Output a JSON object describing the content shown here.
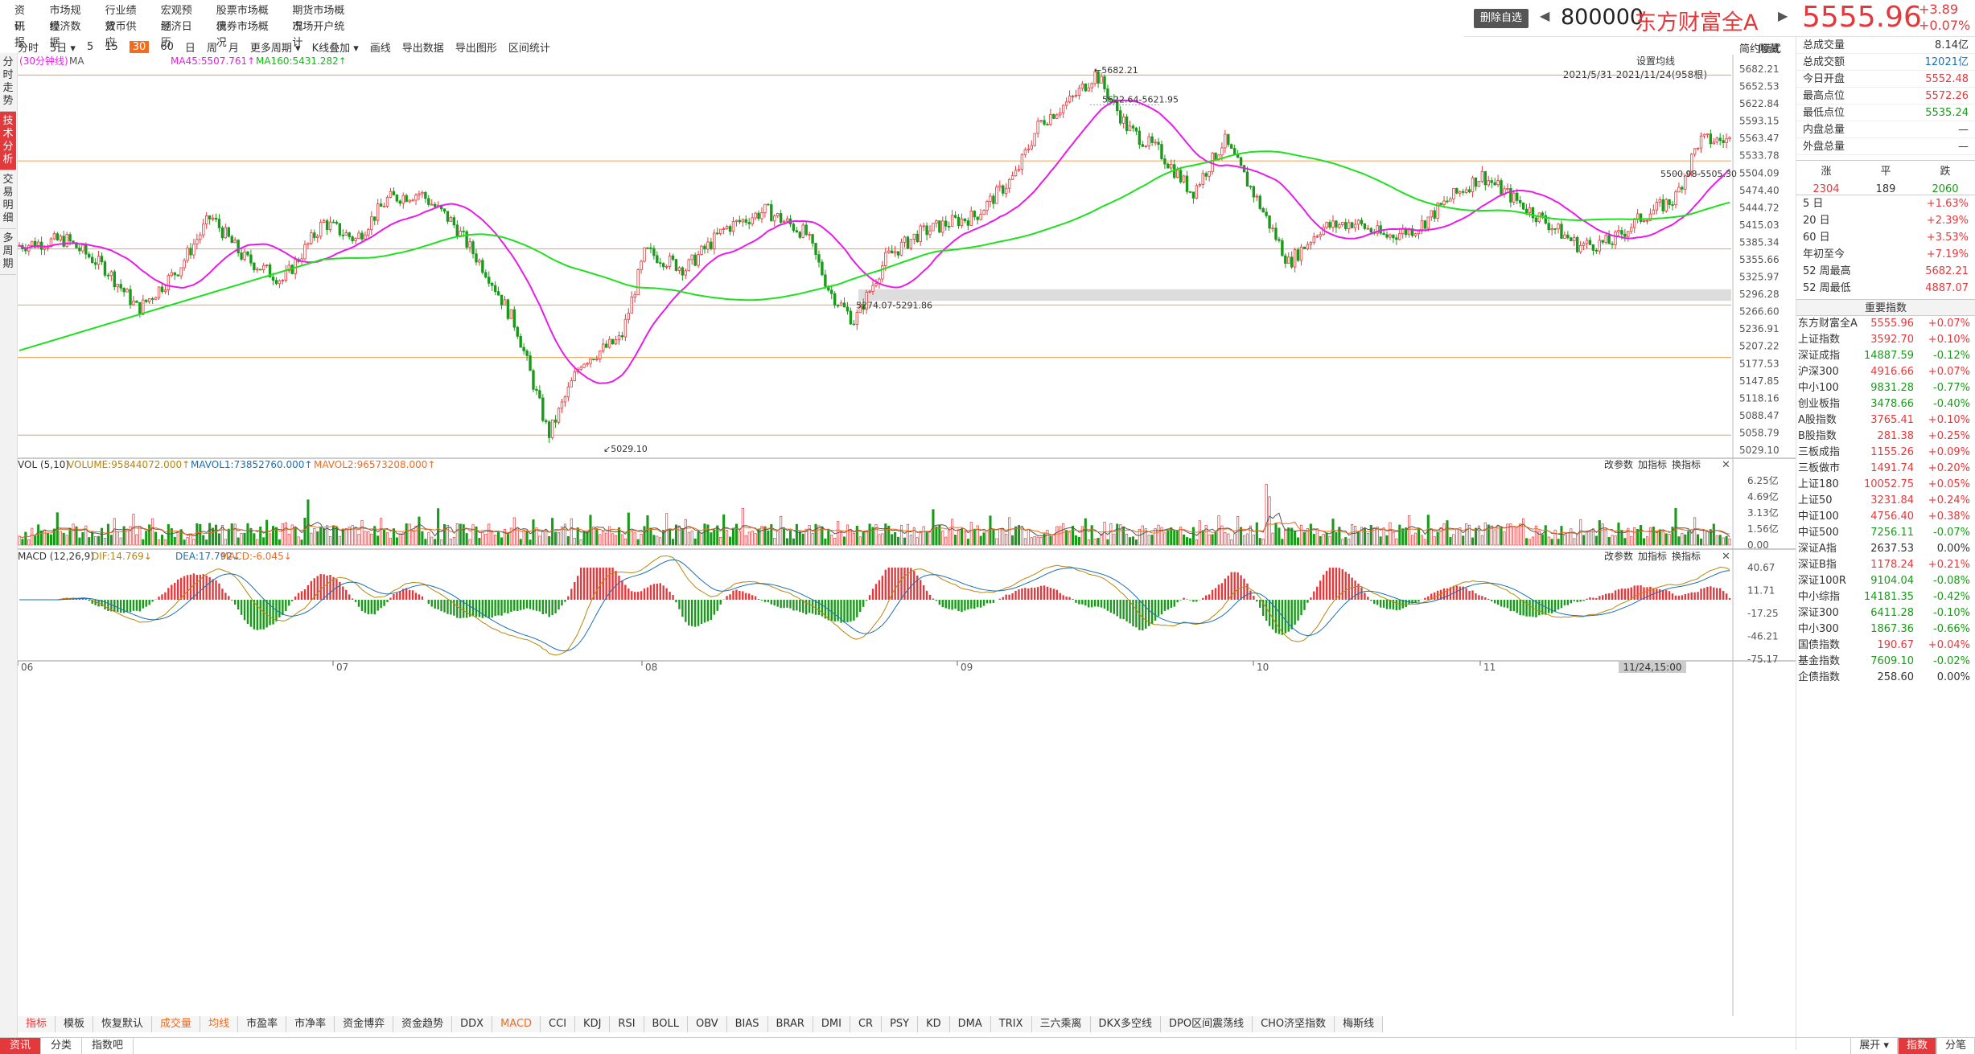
{
  "menu": {
    "row1": [
      "资讯",
      "市场规模",
      "行业绩效",
      "宏观预测",
      "股票市场概况",
      "期货市场概况"
    ],
    "row2": [
      "研报",
      "经济数据",
      "货币供应",
      "经济日历",
      "债券市场概况",
      "市场开户统计"
    ]
  },
  "header": {
    "delete_label": "删除自选",
    "code": "800000",
    "name": "东方财富全A",
    "price": "5555.96",
    "change": "+3.89",
    "change_pct": "+0.07%"
  },
  "side_tabs": [
    "分时走势",
    "技术分析",
    "交易明细",
    "多周期"
  ],
  "toolbar": {
    "items": [
      "分时",
      "5日",
      "5",
      "15",
      "30",
      "60",
      "日",
      "周",
      "月",
      "更多周期",
      "K线叠加",
      "画线",
      "导出数据",
      "导出图形",
      "区间统计"
    ],
    "active": "30",
    "right1": "简约模式",
    "right2": "隐藏"
  },
  "main_chart": {
    "period_label": "(30分钟线)",
    "ma_label": "MA",
    "ma45": "MA45:5507.761↑",
    "ma160": "MA160:5431.282↑",
    "setting": "设置均线",
    "range": "2021/5/31-2021/11/24(958根)",
    "y_ticks": [
      "5682.21",
      "5652.53",
      "5622.84",
      "5593.15",
      "5563.47",
      "5533.78",
      "5504.09",
      "5474.40",
      "5444.72",
      "5415.03",
      "5385.34",
      "5355.66",
      "5325.97",
      "5296.28",
      "5266.60",
      "5236.91",
      "5207.22",
      "5177.53",
      "5147.85",
      "5118.16",
      "5088.47",
      "5058.79",
      "5029.10"
    ],
    "ann_high": "5682.21",
    "ann_1": "5622.64-5621.95",
    "ann_2": "5274.07-5291.86",
    "ann_3": "5500.98-5505.30",
    "ann_low": "5029.10",
    "ymin": 5029.1,
    "ymax": 5682.21
  },
  "vol": {
    "title": "VOL (5,10)",
    "volume": "VOLUME:95844072.000↑",
    "mavol1": "MAVOL1:73852760.000↑",
    "mavol2": "MAVOL2:96573208.000↑",
    "btns": [
      "改参数",
      "加指标",
      "换指标"
    ],
    "y_ticks": [
      "6.25亿",
      "4.69亿",
      "3.13亿",
      "1.56亿",
      "0.00"
    ]
  },
  "macd": {
    "title": "MACD (12,26,9)",
    "dif": "DIF:14.769↓",
    "dea": "DEA:17.792↓",
    "macd": "MACD:-6.045↓",
    "btns": [
      "改参数",
      "加指标",
      "换指标"
    ],
    "y_ticks": [
      "40.67",
      "11.71",
      "-17.25",
      "-46.21",
      "-75.17"
    ]
  },
  "x_ticks": [
    "06",
    "07",
    "08",
    "09",
    "10",
    "11"
  ],
  "x_cursor": "11/24,15:00",
  "stats": [
    [
      "总成交量",
      "8.14亿",
      "k"
    ],
    [
      "总成交额",
      "12021亿",
      "b"
    ],
    [
      "今日开盘",
      "5552.48",
      "r"
    ],
    [
      "最高点位",
      "5572.26",
      "r"
    ],
    [
      "最低点位",
      "5535.24",
      "g"
    ],
    [
      "内盘总量",
      "—",
      "k"
    ],
    [
      "外盘总量",
      "—",
      "k"
    ]
  ],
  "updown": {
    "labels": [
      "涨",
      "平",
      "跌"
    ],
    "values": [
      "2304",
      "189",
      "2060"
    ]
  },
  "perf": [
    [
      "5 日",
      "+1.63%"
    ],
    [
      "20 日",
      "+2.39%"
    ],
    [
      "60 日",
      "+3.53%"
    ],
    [
      "年初至今",
      "+7.19%"
    ],
    [
      "52 周最高",
      "5682.21"
    ],
    [
      "52 周最低",
      "4887.07"
    ]
  ],
  "index_header": "重要指数",
  "indices": [
    [
      "东方财富全A",
      "5555.96",
      "+0.07%",
      "r"
    ],
    [
      "上证指数",
      "3592.70",
      "+0.10%",
      "r"
    ],
    [
      "深证成指",
      "14887.59",
      "-0.12%",
      "g"
    ],
    [
      "沪深300",
      "4916.66",
      "+0.07%",
      "r"
    ],
    [
      "中小100",
      "9831.28",
      "-0.77%",
      "g"
    ],
    [
      "创业板指",
      "3478.66",
      "-0.40%",
      "g"
    ],
    [
      "A股指数",
      "3765.41",
      "+0.10%",
      "r"
    ],
    [
      "B股指数",
      "281.38",
      "+0.25%",
      "r"
    ],
    [
      "三板成指",
      "1155.26",
      "+0.09%",
      "r"
    ],
    [
      "三板做市",
      "1491.74",
      "+0.20%",
      "r"
    ],
    [
      "上证180",
      "10052.75",
      "+0.05%",
      "r"
    ],
    [
      "上证50",
      "3231.84",
      "+0.24%",
      "r"
    ],
    [
      "中证100",
      "4756.40",
      "+0.38%",
      "r"
    ],
    [
      "中证500",
      "7256.11",
      "-0.07%",
      "g"
    ],
    [
      "深证A指",
      "2637.53",
      "0.00%",
      "k"
    ],
    [
      "深证B指",
      "1178.24",
      "+0.21%",
      "r"
    ],
    [
      "深证100R",
      "9104.04",
      "-0.08%",
      "g"
    ],
    [
      "中小综指",
      "14181.35",
      "-0.42%",
      "g"
    ],
    [
      "深证300",
      "6411.28",
      "-0.10%",
      "g"
    ],
    [
      "中小300",
      "1867.36",
      "-0.66%",
      "g"
    ],
    [
      "国债指数",
      "190.67",
      "+0.04%",
      "r"
    ],
    [
      "基金指数",
      "7609.10",
      "-0.02%",
      "g"
    ],
    [
      "企债指数",
      "258.60",
      "0.00%",
      "k"
    ]
  ],
  "indicator_tabs": [
    "指标",
    "模板",
    "恢复默认",
    "成交量",
    "均线",
    "市盈率",
    "市净率",
    "资金博弈",
    "资金趋势",
    "DDX",
    "MACD",
    "CCI",
    "KDJ",
    "RSI",
    "BOLL",
    "OBV",
    "BIAS",
    "BRAR",
    "DMI",
    "CR",
    "PSY",
    "KD",
    "DMA",
    "TRIX",
    "三六乘离",
    "DKX多空线",
    "DPO区间震荡线",
    "CHO济坚指数",
    "梅斯线"
  ],
  "footer_tabs": [
    "资讯",
    "分类",
    "指数吧"
  ],
  "footer_right": [
    "展开",
    "指数",
    "分笔"
  ],
  "colors": {
    "up": "#e4393c",
    "down": "#1a9a1a",
    "ma45": "#e81ce8",
    "ma160": "#1ee01e",
    "level": "#f0a050"
  }
}
